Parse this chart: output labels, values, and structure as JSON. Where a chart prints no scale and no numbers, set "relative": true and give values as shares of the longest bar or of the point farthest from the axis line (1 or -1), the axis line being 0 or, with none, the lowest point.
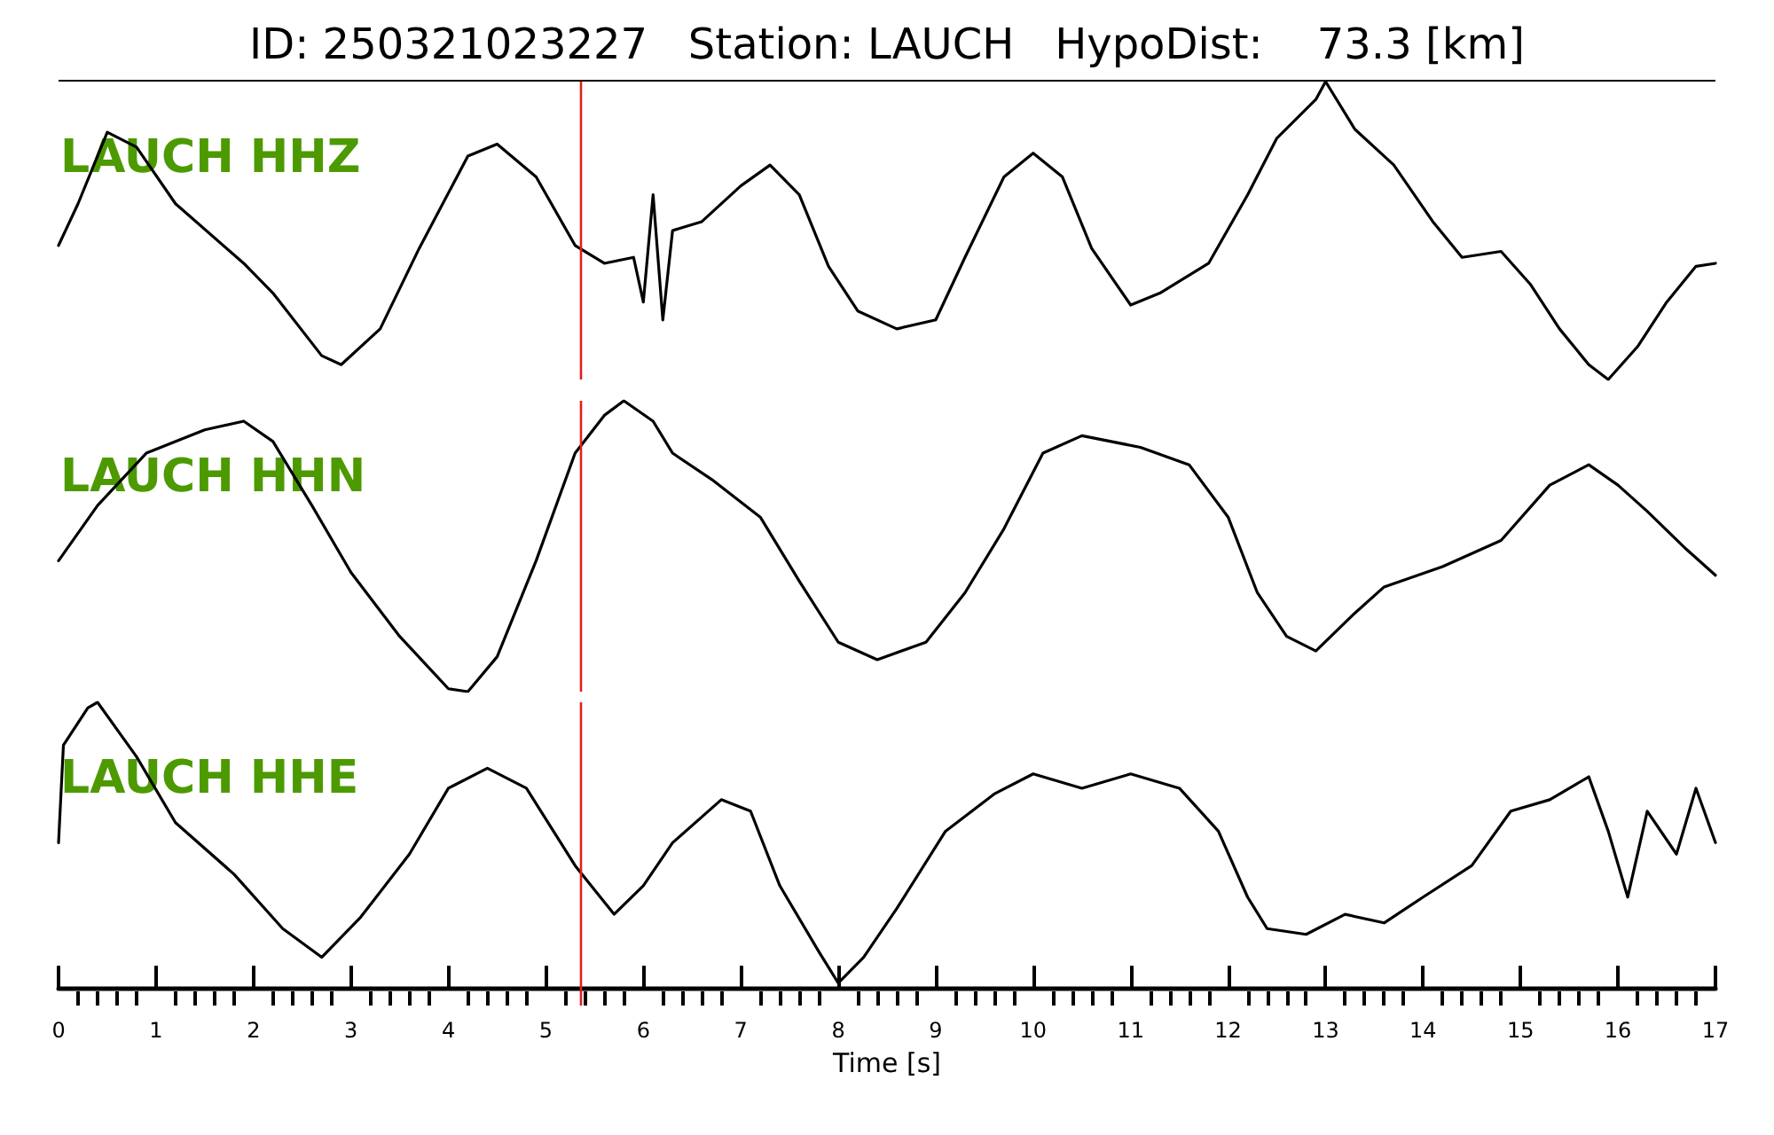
{
  "chart_data": [
    {
      "type": "line",
      "title": "ID: 250321023227   Station: LAUCH   HypoDist:    73.3 [km]",
      "relative": true,
      "tick_labels": false,
      "xlim": [
        0,
        17
      ],
      "annotations": [
        "LAUCH HHZ"
      ],
      "ref_lines": [
        {
          "axis": "x",
          "value": 5.35,
          "color": "#e0201b"
        }
      ],
      "series": [
        {
          "color": "#000000",
          "x": [
            0,
            0.2,
            0.5,
            0.8,
            1.2,
            1.9,
            2.2,
            2.7,
            2.9,
            3.3,
            3.7,
            4.2,
            4.5,
            4.9,
            5.3,
            5.6,
            5.9,
            6.0,
            6.1,
            6.2,
            6.3,
            6.6,
            7.0,
            7.3,
            7.6,
            7.9,
            8.2,
            8.6,
            9.0,
            9.3,
            9.7,
            10.0,
            10.3,
            10.6,
            11.0,
            11.3,
            11.8,
            12.2,
            12.5,
            12.9,
            13.0,
            13.3,
            13.7,
            14.1,
            14.4,
            14.8,
            15.1,
            15.4,
            15.7,
            15.9,
            16.2,
            16.5,
            16.8,
            17.0
          ],
          "values": [
            0.45,
            0.59,
            0.83,
            0.78,
            0.59,
            0.39,
            0.29,
            0.08,
            0.05,
            0.17,
            0.44,
            0.75,
            0.79,
            0.68,
            0.45,
            0.39,
            0.41,
            0.26,
            0.62,
            0.2,
            0.5,
            0.53,
            0.65,
            0.72,
            0.62,
            0.38,
            0.23,
            0.17,
            0.2,
            0.41,
            0.68,
            0.76,
            0.68,
            0.44,
            0.25,
            0.29,
            0.39,
            0.62,
            0.81,
            0.94,
            1.0,
            0.84,
            0.72,
            0.53,
            0.41,
            0.43,
            0.32,
            0.17,
            0.05,
            0,
            0.11,
            0.26,
            0.38,
            0.39
          ]
        }
      ]
    },
    {
      "type": "line",
      "relative": true,
      "tick_labels": false,
      "xlim": [
        0,
        17
      ],
      "annotations": [
        "LAUCH HHN"
      ],
      "ref_lines": [
        {
          "axis": "x",
          "value": 5.35,
          "color": "#e0201b"
        }
      ],
      "series": [
        {
          "color": "#000000",
          "x": [
            0,
            0.4,
            0.9,
            1.5,
            1.9,
            2.2,
            2.6,
            3.0,
            3.5,
            4.0,
            4.2,
            4.5,
            4.9,
            5.3,
            5.6,
            5.8,
            6.1,
            6.3,
            6.7,
            7.2,
            7.6,
            8.0,
            8.4,
            8.9,
            9.3,
            9.7,
            10.1,
            10.5,
            11.1,
            11.6,
            12.0,
            12.3,
            12.6,
            12.9,
            13.3,
            13.6,
            14.2,
            14.8,
            15.3,
            15.7,
            16.0,
            16.3,
            16.7,
            17.0
          ],
          "values": [
            0.45,
            0.64,
            0.82,
            0.9,
            0.93,
            0.86,
            0.64,
            0.41,
            0.19,
            0.01,
            0,
            0.12,
            0.45,
            0.82,
            0.95,
            1.0,
            0.93,
            0.82,
            0.73,
            0.6,
            0.38,
            0.17,
            0.11,
            0.17,
            0.34,
            0.56,
            0.82,
            0.88,
            0.84,
            0.78,
            0.6,
            0.34,
            0.19,
            0.14,
            0.27,
            0.36,
            0.43,
            0.52,
            0.71,
            0.78,
            0.71,
            0.62,
            0.49,
            0.4
          ]
        }
      ]
    },
    {
      "type": "line",
      "relative": true,
      "tick_labels": "x",
      "xlim": [
        0,
        17
      ],
      "xlabel": "Time [s]",
      "annotations": [
        "LAUCH HHE"
      ],
      "xticks": [
        0,
        {
          "value": 0.2,
          "label": null
        },
        {
          "value": 0.4,
          "label": null
        },
        {
          "value": 0.6,
          "label": null
        },
        {
          "value": 0.8,
          "label": null
        },
        1,
        {
          "value": 1.2,
          "label": null
        },
        {
          "value": 1.4,
          "label": null
        },
        {
          "value": 1.6,
          "label": null
        },
        {
          "value": 1.8,
          "label": null
        },
        2,
        {
          "value": 2.2,
          "label": null
        },
        {
          "value": 2.4,
          "label": null
        },
        {
          "value": 2.6,
          "label": null
        },
        {
          "value": 2.8,
          "label": null
        },
        3,
        {
          "value": 3.2,
          "label": null
        },
        {
          "value": 3.4,
          "label": null
        },
        {
          "value": 3.6,
          "label": null
        },
        {
          "value": 3.8,
          "label": null
        },
        4,
        {
          "value": 4.2,
          "label": null
        },
        {
          "value": 4.4,
          "label": null
        },
        {
          "value": 4.6,
          "label": null
        },
        {
          "value": 4.8,
          "label": null
        },
        5,
        {
          "value": 5.2,
          "label": null
        },
        {
          "value": 5.4,
          "label": null
        },
        {
          "value": 5.6,
          "label": null
        },
        {
          "value": 5.8,
          "label": null
        },
        6,
        {
          "value": 6.2,
          "label": null
        },
        {
          "value": 6.4,
          "label": null
        },
        {
          "value": 6.6,
          "label": null
        },
        {
          "value": 6.8,
          "label": null
        },
        7,
        {
          "value": 7.2,
          "label": null
        },
        {
          "value": 7.4,
          "label": null
        },
        {
          "value": 7.6,
          "label": null
        },
        {
          "value": 7.8,
          "label": null
        },
        8,
        {
          "value": 8.2,
          "label": null
        },
        {
          "value": 8.4,
          "label": null
        },
        {
          "value": 8.6,
          "label": null
        },
        {
          "value": 8.8,
          "label": null
        },
        9,
        {
          "value": 9.2,
          "label": null
        },
        {
          "value": 9.4,
          "label": null
        },
        {
          "value": 9.6,
          "label": null
        },
        {
          "value": 9.8,
          "label": null
        },
        10,
        {
          "value": 10.2,
          "label": null
        },
        {
          "value": 10.4,
          "label": null
        },
        {
          "value": 10.6,
          "label": null
        },
        {
          "value": 10.8,
          "label": null
        },
        11,
        {
          "value": 11.2,
          "label": null
        },
        {
          "value": 11.4,
          "label": null
        },
        {
          "value": 11.6,
          "label": null
        },
        {
          "value": 11.8,
          "label": null
        },
        12,
        {
          "value": 12.2,
          "label": null
        },
        {
          "value": 12.4,
          "label": null
        },
        {
          "value": 12.6,
          "label": null
        },
        {
          "value": 12.8,
          "label": null
        },
        13,
        {
          "value": 13.2,
          "label": null
        },
        {
          "value": 13.4,
          "label": null
        },
        {
          "value": 13.6,
          "label": null
        },
        {
          "value": 13.8,
          "label": null
        },
        14,
        {
          "value": 14.2,
          "label": null
        },
        {
          "value": 14.4,
          "label": null
        },
        {
          "value": 14.6,
          "label": null
        },
        {
          "value": 14.8,
          "label": null
        },
        15,
        {
          "value": 15.2,
          "label": null
        },
        {
          "value": 15.4,
          "label": null
        },
        {
          "value": 15.6,
          "label": null
        },
        {
          "value": 15.8,
          "label": null
        },
        16,
        {
          "value": 16.2,
          "label": null
        },
        {
          "value": 16.4,
          "label": null
        },
        {
          "value": 16.6,
          "label": null
        },
        {
          "value": 16.8,
          "label": null
        },
        17
      ],
      "ref_lines": [
        {
          "axis": "x",
          "value": 5.35,
          "color": "#e0201b"
        }
      ],
      "series": [
        {
          "color": "#000000",
          "x": [
            0,
            0.05,
            0.3,
            0.4,
            0.8,
            1.2,
            1.8,
            2.3,
            2.7,
            3.1,
            3.6,
            4.0,
            4.4,
            4.8,
            5.3,
            5.7,
            6.0,
            6.3,
            6.8,
            7.1,
            7.4,
            7.8,
            8.0,
            8.26,
            8.6,
            9.1,
            9.6,
            10.0,
            10.5,
            11.0,
            11.5,
            11.9,
            12.2,
            12.4,
            12.8,
            13.2,
            13.6,
            14.0,
            14.5,
            14.9,
            15.3,
            15.7,
            15.9,
            16.1,
            16.3,
            16.6,
            16.8,
            17.0
          ],
          "values": [
            0.51,
            0.85,
            0.98,
            1.0,
            0.81,
            0.58,
            0.4,
            0.21,
            0.11,
            0.25,
            0.47,
            0.7,
            0.77,
            0.7,
            0.43,
            0.26,
            0.36,
            0.51,
            0.66,
            0.62,
            0.36,
            0.13,
            0.02,
            0.11,
            0.28,
            0.55,
            0.68,
            0.75,
            0.7,
            0.75,
            0.7,
            0.55,
            0.32,
            0.21,
            0.19,
            0.26,
            0.23,
            0.32,
            0.43,
            0.62,
            0.66,
            0.74,
            0.55,
            0.32,
            0.62,
            0.47,
            0.7,
            0.51
          ]
        }
      ]
    }
  ]
}
